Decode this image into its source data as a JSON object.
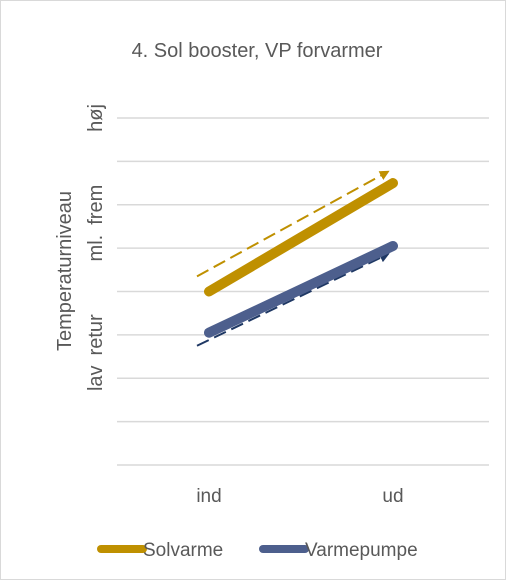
{
  "chart_data": {
    "type": "line",
    "title": "4. Sol booster, VP forvarmer",
    "ylabel": "Temperaturniveau",
    "categories": [
      "ind",
      "ud"
    ],
    "y_tick_labels": [
      {
        "label": "lav",
        "value": 2
      },
      {
        "label": "retur",
        "value": 3
      },
      {
        "label": "ml.",
        "value": 5
      },
      {
        "label": "frem",
        "value": 6
      },
      {
        "label": "høj",
        "value": 8
      }
    ],
    "ylim": [
      0,
      8
    ],
    "grid": true,
    "legend_position": "bottom",
    "series": [
      {
        "name": "Solvarme",
        "color": "#bf9000",
        "values": [
          4,
          6.5
        ]
      },
      {
        "name": "Varmepumpe",
        "color": "#4d5f8d",
        "values": [
          3.05,
          5.05
        ]
      }
    ],
    "annotations": [
      {
        "type": "dashed-arrow",
        "color": "#bf9000",
        "from": [
          0,
          4.35
        ],
        "to": [
          1,
          6.75
        ]
      },
      {
        "type": "dashed-arrow",
        "color": "#1f3864",
        "from": [
          0,
          2.75
        ],
        "to": [
          1,
          4.85
        ]
      }
    ]
  }
}
